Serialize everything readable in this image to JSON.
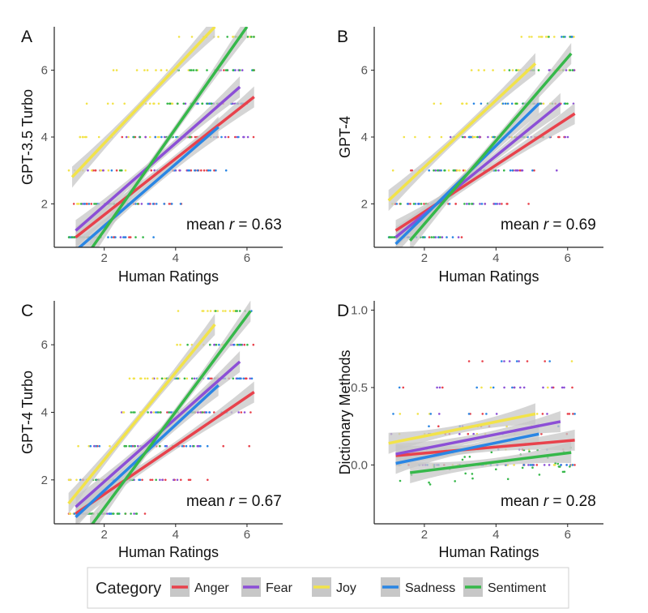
{
  "colors": {
    "Anger": "#e8424c",
    "Fear": "#8c4fd6",
    "Joy": "#f2e34a",
    "Sadness": "#2a86e4",
    "Sentiment": "#36b84a",
    "band": "#c7c7c7",
    "axis": "#222222",
    "tick_label": "#555555"
  },
  "legend": {
    "title": "Category",
    "items": [
      "Anger",
      "Fear",
      "Joy",
      "Sadness",
      "Sentiment"
    ]
  },
  "chart_data": [
    {
      "type": "scatter",
      "panel": "A",
      "xlabel": "Human Ratings",
      "ylabel": "GPT-3.5 Turbo",
      "xlim": [
        0.6,
        7.0
      ],
      "ylim": [
        0.7,
        7.3
      ],
      "xticks": [
        2,
        4,
        6
      ],
      "yticks": [
        2,
        4,
        6
      ],
      "ytick_labels": [
        "2",
        "4",
        "6"
      ],
      "annotation": {
        "prefix": "mean ",
        "symbol": "r",
        "value": "= 0.63"
      },
      "regression_lines": [
        {
          "name": "Anger",
          "x": [
            1.2,
            6.2
          ],
          "y": [
            1.0,
            5.2
          ]
        },
        {
          "name": "Fear",
          "x": [
            1.2,
            5.8
          ],
          "y": [
            1.2,
            5.5
          ]
        },
        {
          "name": "Joy",
          "x": [
            1.1,
            5.1
          ],
          "y": [
            2.8,
            7.3
          ]
        },
        {
          "name": "Sadness",
          "x": [
            1.2,
            5.2
          ],
          "y": [
            0.6,
            4.3
          ]
        },
        {
          "name": "Sentiment",
          "x": [
            1.6,
            6.0
          ],
          "y": [
            0.6,
            7.3
          ]
        }
      ]
    },
    {
      "type": "scatter",
      "panel": "B",
      "xlabel": "Human Ratings",
      "ylabel": "GPT-4",
      "xlim": [
        0.6,
        7.0
      ],
      "ylim": [
        0.7,
        7.3
      ],
      "xticks": [
        2,
        4,
        6
      ],
      "yticks": [
        2,
        4,
        6
      ],
      "ytick_labels": [
        "2",
        "4",
        "6"
      ],
      "annotation": {
        "prefix": "mean ",
        "symbol": "r",
        "value": "= 0.69"
      },
      "regression_lines": [
        {
          "name": "Anger",
          "x": [
            1.2,
            6.2
          ],
          "y": [
            1.2,
            4.7
          ]
        },
        {
          "name": "Fear",
          "x": [
            1.2,
            5.8
          ],
          "y": [
            1.0,
            5.0
          ]
        },
        {
          "name": "Joy",
          "x": [
            1.0,
            5.1
          ],
          "y": [
            2.1,
            6.2
          ]
        },
        {
          "name": "Sadness",
          "x": [
            1.2,
            5.2
          ],
          "y": [
            0.8,
            5.0
          ]
        },
        {
          "name": "Sentiment",
          "x": [
            1.6,
            6.1
          ],
          "y": [
            0.9,
            6.5
          ]
        }
      ]
    },
    {
      "type": "scatter",
      "panel": "C",
      "xlabel": "Human Ratings",
      "ylabel": "GPT-4 Turbo",
      "xlim": [
        0.6,
        7.0
      ],
      "ylim": [
        0.7,
        7.3
      ],
      "xticks": [
        2,
        4,
        6
      ],
      "yticks": [
        2,
        4,
        6
      ],
      "ytick_labels": [
        "2",
        "4",
        "6"
      ],
      "annotation": {
        "prefix": "mean ",
        "symbol": "r",
        "value": "= 0.67"
      },
      "regression_lines": [
        {
          "name": "Anger",
          "x": [
            1.2,
            6.2
          ],
          "y": [
            1.0,
            4.6
          ]
        },
        {
          "name": "Fear",
          "x": [
            1.2,
            5.8
          ],
          "y": [
            1.2,
            5.5
          ]
        },
        {
          "name": "Joy",
          "x": [
            1.0,
            5.1
          ],
          "y": [
            1.3,
            6.6
          ]
        },
        {
          "name": "Sadness",
          "x": [
            1.2,
            5.2
          ],
          "y": [
            0.9,
            4.8
          ]
        },
        {
          "name": "Sentiment",
          "x": [
            1.6,
            6.1
          ],
          "y": [
            0.6,
            7.0
          ]
        }
      ]
    },
    {
      "type": "scatter",
      "panel": "D",
      "xlabel": "Human Ratings",
      "ylabel": "Dictionary Methods",
      "xlim": [
        0.6,
        7.0
      ],
      "ylim": [
        -0.38,
        1.06
      ],
      "xticks": [
        2,
        4,
        6
      ],
      "yticks": [
        0.0,
        0.5,
        1.0
      ],
      "ytick_labels": [
        "0.0",
        "0.5",
        "1.0"
      ],
      "annotation": {
        "prefix": "mean ",
        "symbol": "r",
        "value": "= 0.28"
      },
      "regression_lines": [
        {
          "name": "Anger",
          "x": [
            1.2,
            6.2
          ],
          "y": [
            0.06,
            0.16
          ]
        },
        {
          "name": "Fear",
          "x": [
            1.2,
            5.8
          ],
          "y": [
            0.07,
            0.28
          ]
        },
        {
          "name": "Joy",
          "x": [
            1.0,
            5.1
          ],
          "y": [
            0.14,
            0.33
          ]
        },
        {
          "name": "Sadness",
          "x": [
            1.2,
            5.2
          ],
          "y": [
            0.01,
            0.2
          ]
        },
        {
          "name": "Sentiment",
          "x": [
            1.6,
            6.1
          ],
          "y": [
            -0.05,
            0.08
          ]
        }
      ]
    }
  ]
}
